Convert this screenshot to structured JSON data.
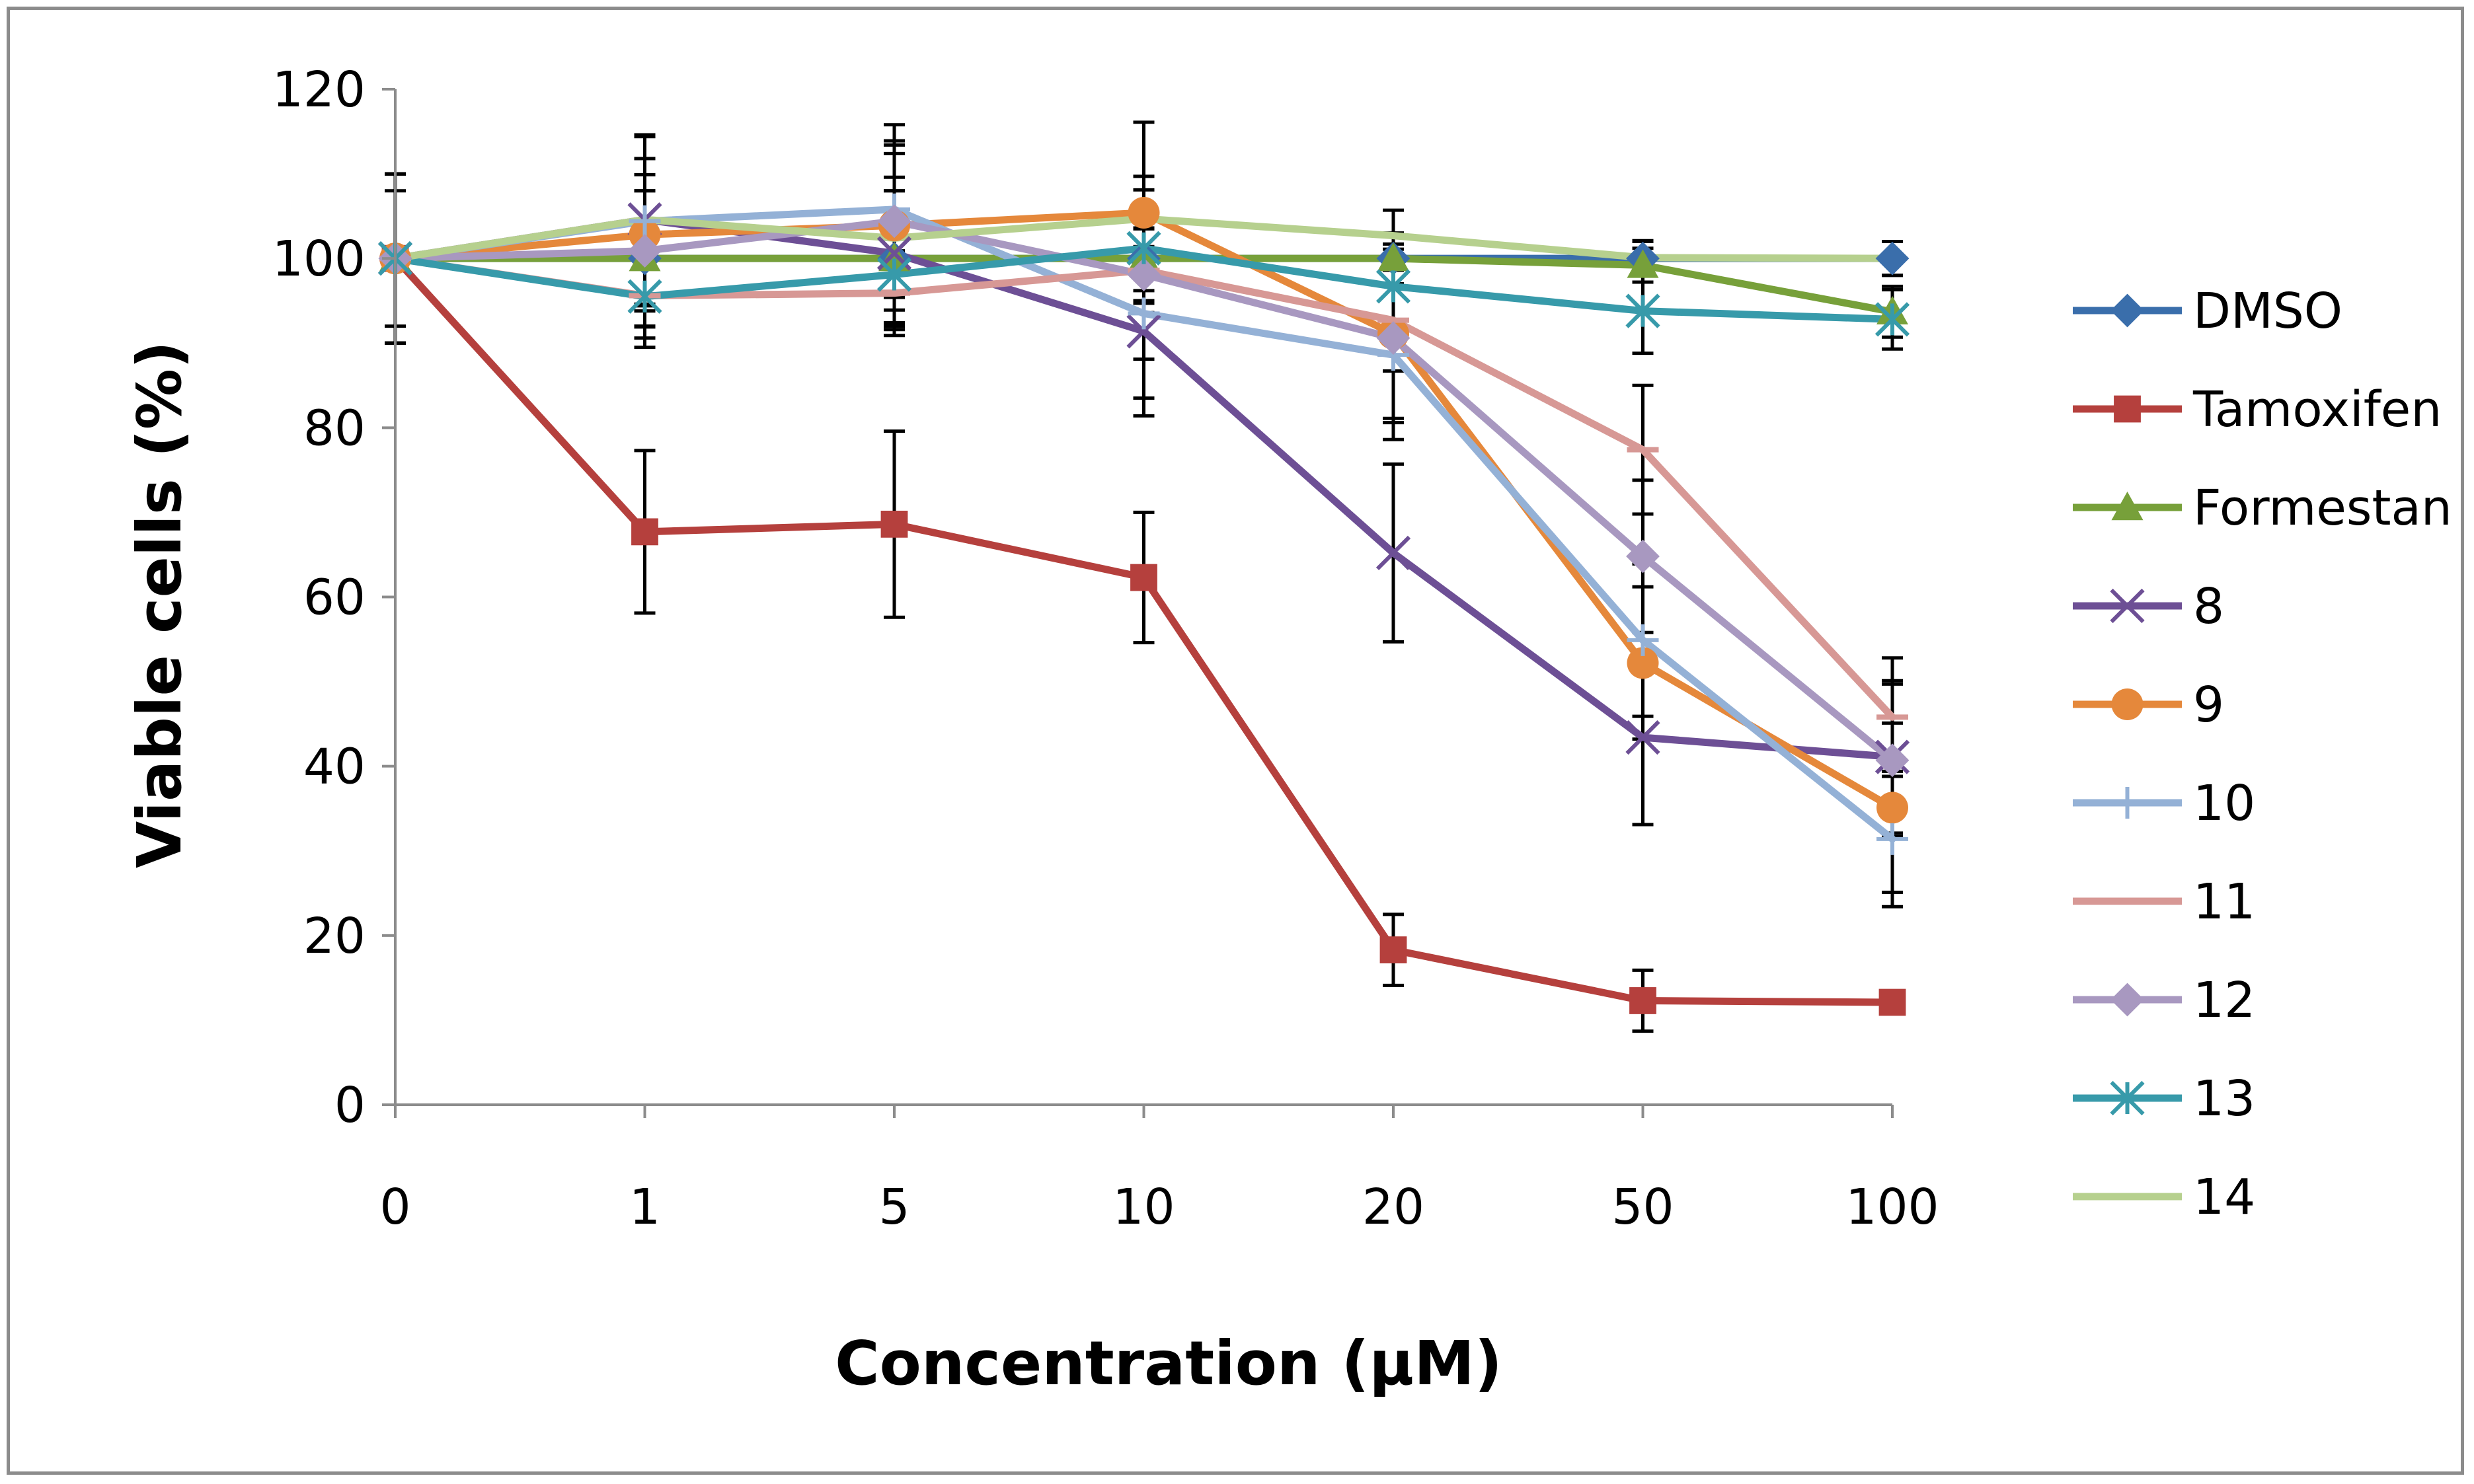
{
  "chart_data": {
    "type": "line",
    "categories": [
      "0",
      "1",
      "5",
      "10",
      "20",
      "50",
      "100"
    ],
    "xlabel": "Concentration (μM)",
    "ylabel": "Viable cells (%)",
    "ylim": [
      0,
      120
    ],
    "yticks": [
      0,
      20,
      40,
      60,
      80,
      100,
      120
    ],
    "grid": false,
    "legend_position": "right",
    "series": [
      {
        "name": "DMSO",
        "color": "#3a6eab",
        "marker": "diamond",
        "values": [
          100,
          100,
          100,
          100,
          100,
          100,
          100
        ],
        "errors": [
          10,
          8,
          8,
          5,
          3,
          2,
          2
        ]
      },
      {
        "name": "Tamoxifen",
        "color": "#b5403d",
        "marker": "square",
        "values": [
          100,
          67.7,
          68.6,
          62.3,
          18.3,
          12.3,
          12.1
        ],
        "errors": [
          0,
          9.6,
          11,
          7.7,
          4.2,
          3.6,
          0
        ]
      },
      {
        "name": "Formestan",
        "color": "#77a03a",
        "marker": "triangle",
        "values": [
          100,
          100,
          100,
          100,
          100,
          99.2,
          93.7
        ],
        "errors": [
          10,
          8,
          8,
          5,
          3,
          2,
          3
        ]
      },
      {
        "name": "8",
        "color": "#6d4f95",
        "marker": "x",
        "values": [
          100,
          104.6,
          100.6,
          91.4,
          65.2,
          43.4,
          41.1
        ],
        "errors": [
          10,
          10,
          9,
          10,
          10.5,
          10.3,
          9
        ]
      },
      {
        "name": "9",
        "color": "#e5883b",
        "marker": "circle",
        "values": [
          100,
          102.8,
          103.9,
          105.4,
          91.1,
          52.2,
          35.1
        ],
        "errors": [
          10,
          9,
          10,
          10.7,
          10,
          9,
          10
        ]
      },
      {
        "name": "10",
        "color": "#94b1d6",
        "marker": "plus",
        "values": [
          100,
          104.4,
          105.8,
          93.5,
          88.6,
          54.9,
          31.4
        ],
        "errors": [
          10,
          10,
          10,
          10,
          10,
          9,
          8
        ]
      },
      {
        "name": "11",
        "color": "#d79895",
        "marker": "dash",
        "values": [
          100,
          95.6,
          95.9,
          98.6,
          92.7,
          77.4,
          45.8
        ],
        "errors": [
          10,
          5,
          5,
          5,
          6,
          7.6,
          7
        ]
      },
      {
        "name": "12",
        "color": "#a898c0",
        "marker": "diamond",
        "values": [
          100,
          100.9,
          104.4,
          98.1,
          90.6,
          64.8,
          40.7
        ],
        "errors": [
          10,
          9,
          9,
          10,
          10,
          9,
          9
        ]
      },
      {
        "name": "13",
        "color": "#379aaa",
        "marker": "star",
        "values": [
          100,
          95.5,
          98.1,
          101.2,
          96.7,
          93.8,
          92.8
        ],
        "errors": [
          8,
          6,
          6,
          5,
          5,
          5,
          3.5
        ]
      },
      {
        "name": "14",
        "color": "#b6d08e",
        "marker": "none",
        "values": [
          100,
          104.6,
          102.4,
          104.7,
          102.7,
          100.1,
          100
        ],
        "errors": [
          10,
          10,
          10,
          5,
          3,
          2,
          2
        ]
      }
    ]
  }
}
